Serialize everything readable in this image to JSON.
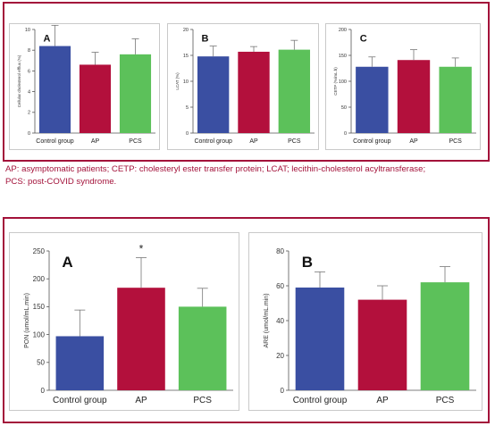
{
  "figure1": {
    "caption_lines": [
      "AP: asymptomatic patients; CETP: cholesteryl ester transfer protein; LCAT; lecithin-cholesterol acyltransferase;",
      "PCS: post-COVID syndrome."
    ]
  },
  "colors": {
    "frame": "#a3123a",
    "caption": "#a3123a",
    "control": "#3a4fa2",
    "ap": "#b3103c",
    "pcs": "#5cc15a"
  },
  "chart_data": [
    {
      "type": "bar",
      "panel_label": "A",
      "ylabel": "Cellular cholesterol efflux (%)",
      "categories": [
        "Control group",
        "AP",
        "PCS"
      ],
      "values": [
        8.4,
        6.6,
        7.6
      ],
      "errors": [
        2.0,
        1.2,
        1.5
      ],
      "ylim": [
        0,
        10
      ],
      "yticks": [
        0,
        2,
        4,
        6,
        8,
        10
      ],
      "significance": [
        "",
        "",
        ""
      ]
    },
    {
      "type": "bar",
      "panel_label": "B",
      "ylabel": "LCAT (%)",
      "categories": [
        "Control group",
        "AP",
        "PCS"
      ],
      "values": [
        14.8,
        15.7,
        16.1
      ],
      "errors": [
        2.0,
        1.0,
        1.8
      ],
      "ylim": [
        0,
        20
      ],
      "yticks": [
        0,
        5,
        10,
        15,
        20
      ],
      "significance": [
        "",
        "",
        ""
      ]
    },
    {
      "type": "bar",
      "panel_label": "C",
      "ylabel": "CETP (%/mL.h)",
      "categories": [
        "Control group",
        "AP",
        "PCS"
      ],
      "values": [
        128,
        141,
        128
      ],
      "errors": [
        19,
        20,
        17
      ],
      "ylim": [
        0,
        200
      ],
      "yticks": [
        0,
        50,
        100,
        150,
        200
      ],
      "significance": [
        "",
        "",
        ""
      ]
    },
    {
      "type": "bar",
      "panel_label": "A",
      "ylabel": "PON (umol/mL.min)",
      "categories": [
        "Control group",
        "AP",
        "PCS"
      ],
      "values": [
        97,
        184,
        150
      ],
      "errors": [
        47,
        54,
        33
      ],
      "ylim": [
        0,
        250
      ],
      "yticks": [
        0,
        50,
        100,
        150,
        200,
        250
      ],
      "significance": [
        "",
        "*",
        ""
      ]
    },
    {
      "type": "bar",
      "panel_label": "B",
      "ylabel": "ARE (umol/mL.min)",
      "categories": [
        "Control group",
        "AP",
        "PCS"
      ],
      "values": [
        59,
        52,
        62
      ],
      "errors": [
        9,
        8,
        9
      ],
      "ylim": [
        0,
        80
      ],
      "yticks": [
        0,
        20,
        40,
        60,
        80
      ],
      "significance": [
        "",
        "",
        ""
      ]
    }
  ]
}
